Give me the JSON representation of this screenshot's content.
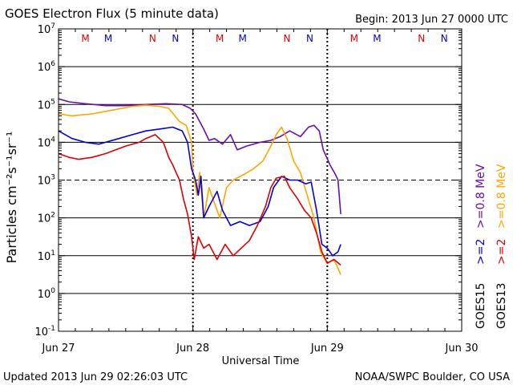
{
  "chart_data": {
    "type": "line",
    "title": "GOES Electron Flux (5 minute data)",
    "begin_label": "Begin: 2013 Jun 27 0000 UTC",
    "xlabel": "Universal Time",
    "ylabel": "Particles cm⁻²s⁻¹sr⁻¹",
    "x_ticks": [
      "Jun 27",
      "Jun 28",
      "Jun 29",
      "Jun 30"
    ],
    "x_unit": "days since 2013 Jun 27 0000 UTC",
    "xlim": [
      0,
      3
    ],
    "yscale": "log",
    "ylim_log10": [
      -1,
      7
    ],
    "y_tick_exponents": [
      -1,
      0,
      1,
      2,
      3,
      4,
      5,
      6,
      7
    ],
    "threshold_exponent": 3,
    "gridlines": "horizontal at each decade, dashed at 10^3",
    "day_markers": [
      1,
      2
    ],
    "markers": [
      {
        "label": "M",
        "x": 0.2,
        "color": "#dd0000"
      },
      {
        "label": "M",
        "x": 0.37,
        "color": "#0000dd"
      },
      {
        "label": "N",
        "x": 0.7,
        "color": "#dd0000"
      },
      {
        "label": "N",
        "x": 0.87,
        "color": "#0000dd"
      },
      {
        "label": "M",
        "x": 1.2,
        "color": "#dd0000"
      },
      {
        "label": "M",
        "x": 1.37,
        "color": "#0000dd"
      },
      {
        "label": "N",
        "x": 1.7,
        "color": "#dd0000"
      },
      {
        "label": "N",
        "x": 1.87,
        "color": "#0000dd"
      },
      {
        "label": "M",
        "x": 2.2,
        "color": "#dd0000"
      },
      {
        "label": "M",
        "x": 2.37,
        "color": "#0000dd"
      },
      {
        "label": "N",
        "x": 2.7,
        "color": "#dd0000"
      },
      {
        "label": "N",
        "x": 2.87,
        "color": "#0000dd"
      }
    ],
    "series": [
      {
        "name": "GOES15 >=0.8 MeV",
        "color": "#6a0dad",
        "points": [
          [
            0,
            5.15
          ],
          [
            0.08,
            5.07
          ],
          [
            0.2,
            5.02
          ],
          [
            0.35,
            4.97
          ],
          [
            0.5,
            4.97
          ],
          [
            0.65,
            5.0
          ],
          [
            0.8,
            5.02
          ],
          [
            0.92,
            5.0
          ],
          [
            0.98,
            4.9
          ],
          [
            1.02,
            4.75
          ],
          [
            1.08,
            4.35
          ],
          [
            1.12,
            4.05
          ],
          [
            1.16,
            4.1
          ],
          [
            1.22,
            3.95
          ],
          [
            1.28,
            4.2
          ],
          [
            1.33,
            3.8
          ],
          [
            1.4,
            3.9
          ],
          [
            1.5,
            4.0
          ],
          [
            1.58,
            4.05
          ],
          [
            1.65,
            4.15
          ],
          [
            1.72,
            4.3
          ],
          [
            1.8,
            4.15
          ],
          [
            1.86,
            4.4
          ],
          [
            1.9,
            4.45
          ],
          [
            1.94,
            4.3
          ],
          [
            1.97,
            3.8
          ],
          [
            2.02,
            3.4
          ],
          [
            2.06,
            3.15
          ],
          [
            2.08,
            3.0
          ],
          [
            2.1,
            2.1
          ]
        ]
      },
      {
        "name": "GOES13 >=0.8 MeV",
        "color": "#ffa500",
        "points": [
          [
            0,
            4.75
          ],
          [
            0.1,
            4.7
          ],
          [
            0.25,
            4.75
          ],
          [
            0.4,
            4.85
          ],
          [
            0.55,
            4.95
          ],
          [
            0.65,
            4.98
          ],
          [
            0.75,
            4.95
          ],
          [
            0.82,
            4.9
          ],
          [
            0.9,
            4.55
          ],
          [
            0.95,
            4.45
          ],
          [
            0.99,
            4.0
          ],
          [
            1.0,
            3.2
          ],
          [
            1.03,
            2.6
          ],
          [
            1.05,
            3.2
          ],
          [
            1.08,
            2.0
          ],
          [
            1.12,
            2.8
          ],
          [
            1.15,
            2.5
          ],
          [
            1.2,
            2.0
          ],
          [
            1.25,
            2.8
          ],
          [
            1.3,
            3.0
          ],
          [
            1.38,
            3.15
          ],
          [
            1.45,
            3.3
          ],
          [
            1.52,
            3.5
          ],
          [
            1.58,
            3.9
          ],
          [
            1.62,
            4.2
          ],
          [
            1.66,
            4.4
          ],
          [
            1.7,
            4.1
          ],
          [
            1.75,
            3.5
          ],
          [
            1.8,
            3.2
          ],
          [
            1.85,
            2.6
          ],
          [
            1.9,
            2.0
          ],
          [
            1.95,
            1.1
          ],
          [
            2.0,
            0.8
          ],
          [
            2.05,
            0.9
          ],
          [
            2.1,
            0.5
          ]
        ]
      },
      {
        "name": "GOES15 >=2 MeV",
        "color": "#0000dd",
        "points": [
          [
            0,
            4.3
          ],
          [
            0.1,
            4.1
          ],
          [
            0.2,
            4.0
          ],
          [
            0.3,
            3.95
          ],
          [
            0.45,
            4.1
          ],
          [
            0.55,
            4.2
          ],
          [
            0.65,
            4.3
          ],
          [
            0.75,
            4.35
          ],
          [
            0.85,
            4.4
          ],
          [
            0.92,
            4.3
          ],
          [
            0.96,
            4.0
          ],
          [
            0.99,
            3.3
          ],
          [
            1.02,
            3.0
          ],
          [
            1.04,
            2.6
          ],
          [
            1.06,
            3.1
          ],
          [
            1.08,
            2.0
          ],
          [
            1.12,
            2.3
          ],
          [
            1.18,
            2.7
          ],
          [
            1.22,
            2.2
          ],
          [
            1.28,
            1.8
          ],
          [
            1.35,
            1.9
          ],
          [
            1.42,
            1.8
          ],
          [
            1.5,
            1.9
          ],
          [
            1.56,
            2.3
          ],
          [
            1.6,
            2.8
          ],
          [
            1.66,
            3.1
          ],
          [
            1.72,
            3.0
          ],
          [
            1.78,
            3.0
          ],
          [
            1.84,
            2.9
          ],
          [
            1.88,
            2.95
          ],
          [
            1.92,
            2.2
          ],
          [
            1.96,
            1.3
          ],
          [
            2.0,
            1.2
          ],
          [
            2.04,
            1.0
          ],
          [
            2.08,
            1.1
          ],
          [
            2.1,
            1.3
          ]
        ]
      },
      {
        "name": "GOES13 >=2 MeV",
        "color": "#dd0000",
        "points": [
          [
            0,
            3.7
          ],
          [
            0.08,
            3.6
          ],
          [
            0.15,
            3.55
          ],
          [
            0.25,
            3.6
          ],
          [
            0.35,
            3.7
          ],
          [
            0.5,
            3.9
          ],
          [
            0.6,
            4.0
          ],
          [
            0.65,
            4.1
          ],
          [
            0.72,
            4.2
          ],
          [
            0.78,
            4.0
          ],
          [
            0.82,
            3.6
          ],
          [
            0.85,
            3.4
          ],
          [
            0.9,
            3.0
          ],
          [
            0.93,
            2.5
          ],
          [
            0.96,
            2.1
          ],
          [
            0.99,
            1.5
          ],
          [
            1.01,
            0.9
          ],
          [
            1.04,
            1.5
          ],
          [
            1.08,
            1.2
          ],
          [
            1.12,
            1.3
          ],
          [
            1.18,
            0.9
          ],
          [
            1.24,
            1.3
          ],
          [
            1.3,
            1.0
          ],
          [
            1.36,
            1.2
          ],
          [
            1.42,
            1.4
          ],
          [
            1.48,
            1.8
          ],
          [
            1.54,
            2.3
          ],
          [
            1.58,
            2.8
          ],
          [
            1.62,
            3.05
          ],
          [
            1.68,
            3.1
          ],
          [
            1.72,
            2.8
          ],
          [
            1.78,
            2.5
          ],
          [
            1.83,
            2.2
          ],
          [
            1.88,
            2.0
          ],
          [
            1.92,
            1.6
          ],
          [
            1.96,
            1.1
          ],
          [
            2.0,
            0.8
          ],
          [
            2.05,
            0.9
          ],
          [
            2.1,
            0.75
          ]
        ]
      }
    ],
    "legend": [
      {
        "sat": "GOES15",
        "lo_label": ">=2",
        "lo_color": "#0000dd",
        "hi_label": ">=0.8 MeV",
        "hi_color": "#6a0dad"
      },
      {
        "sat": "GOES13",
        "lo_label": ">=2",
        "lo_color": "#dd0000",
        "hi_label": ">=0.8 MeV",
        "hi_color": "#ffa500"
      }
    ]
  },
  "footer": {
    "updated": "Updated 2013 Jun 29 02:26:03 UTC",
    "credit": "NOAA/SWPC Boulder, CO USA"
  }
}
